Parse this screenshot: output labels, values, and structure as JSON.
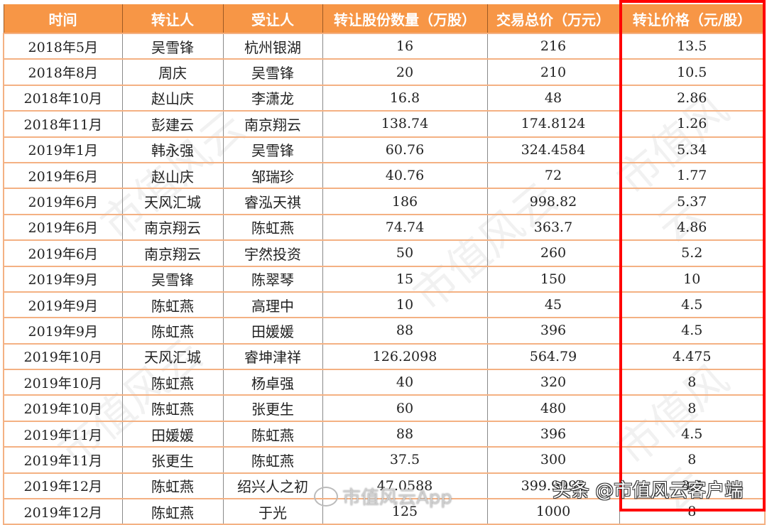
{
  "table": {
    "headers": [
      "时间",
      "转让人",
      "受让人",
      "转让股份数量（万股）",
      "交易总价（万元）",
      "转让价格（元/股）"
    ],
    "rows": [
      [
        "2018年5月",
        "吴雪锋",
        "杭州银湖",
        "16",
        "216",
        "13.5"
      ],
      [
        "2018年8月",
        "周庆",
        "吴雪锋",
        "20",
        "210",
        "10.5"
      ],
      [
        "2018年10月",
        "赵山庆",
        "李潇龙",
        "16.8",
        "48",
        "2.86"
      ],
      [
        "2018年11月",
        "彭建云",
        "南京翔云",
        "138.74",
        "174.8124",
        "1.26"
      ],
      [
        "2019年1月",
        "韩永强",
        "吴雪锋",
        "60.76",
        "324.4584",
        "5.34"
      ],
      [
        "2019年6月",
        "赵山庆",
        "邹瑞珍",
        "40.76",
        "72",
        "1.77"
      ],
      [
        "2019年6月",
        "天风汇城",
        "睿泓天祺",
        "186",
        "998.82",
        "5.37"
      ],
      [
        "2019年6月",
        "南京翔云",
        "陈虹燕",
        "74.74",
        "363.7",
        "4.86"
      ],
      [
        "2019年6月",
        "南京翔云",
        "宇然投资",
        "50",
        "260",
        "5.2"
      ],
      [
        "2019年9月",
        "吴雪锋",
        "陈翠琴",
        "15",
        "150",
        "10"
      ],
      [
        "2019年9月",
        "陈虹燕",
        "高理中",
        "10",
        "45",
        "4.5"
      ],
      [
        "2019年9月",
        "陈虹燕",
        "田媛媛",
        "88",
        "396",
        "4.5"
      ],
      [
        "2019年10月",
        "天风汇城",
        "睿坤津祥",
        "126.2098",
        "564.79",
        "4.475"
      ],
      [
        "2019年10月",
        "陈虹燕",
        "杨卓强",
        "40",
        "320",
        "8"
      ],
      [
        "2019年10月",
        "陈虹燕",
        "张更生",
        "60",
        "480",
        "8"
      ],
      [
        "2019年11月",
        "田媛媛",
        "陈虹燕",
        "88",
        "396",
        "4.5"
      ],
      [
        "2019年11月",
        "张更生",
        "陈虹燕",
        "37.5",
        "300",
        "8"
      ],
      [
        "2019年12月",
        "陈虹燕",
        "绍兴人之初",
        "47.0588",
        "399.9998",
        "8.5"
      ],
      [
        "2019年12月",
        "陈虹燕",
        "于光",
        "125",
        "1000",
        "8"
      ]
    ]
  },
  "watermarks": {
    "background": "市值风云",
    "weibo": "市值风云App",
    "toutiao": "头条 @市值风云客户端"
  },
  "colors": {
    "header_bg": "#f79646",
    "row_border": "#f4b183",
    "highlight": "#ff0000"
  }
}
